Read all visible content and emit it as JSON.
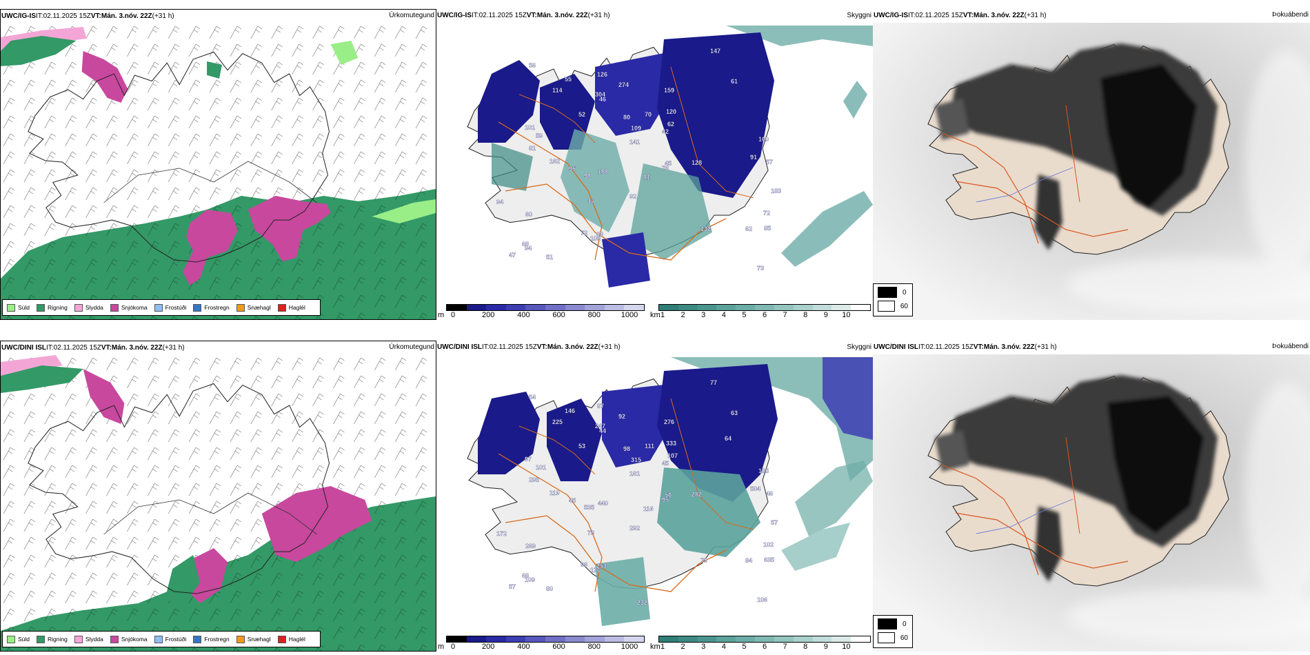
{
  "rows": [
    {
      "model": "UWC/IG-IS",
      "init_label": " IT: ",
      "init": "02.11.2025 15Z",
      "valid_label": " VT: ",
      "valid": "Mán. 3.nóv. 22Z",
      "lead": " (+31 h)"
    },
    {
      "model": "UWC/DINI ISL",
      "init_label": " IT: ",
      "init": "02.11.2025 15Z",
      "valid_label": " VT: ",
      "valid": "Mán. 3.nóv. 22Z",
      "lead": " (+31 h)"
    }
  ],
  "titles": {
    "precip_type": "Úrkomutegund",
    "visibility": "Skyggni",
    "fog": "Þokuábendi"
  },
  "precip_legend": [
    {
      "label": "Súld",
      "color": "#99ee88"
    },
    {
      "label": "Rigning",
      "color": "#339966"
    },
    {
      "label": "Slydda",
      "color": "#f3a6d6"
    },
    {
      "label": "Snjókoma",
      "color": "#c8489e"
    },
    {
      "label": "Frostúði",
      "color": "#8fbfef"
    },
    {
      "label": "Frostregn",
      "color": "#3376c9"
    },
    {
      "label": "Snæhagl",
      "color": "#ef9a1f"
    },
    {
      "label": "Haglél",
      "color": "#e01f1f"
    }
  ],
  "cloudbase_bar": {
    "unit": "m",
    "ticks": [
      "0",
      "200",
      "400",
      "600",
      "800",
      "1000"
    ],
    "colors": [
      "#000000",
      "#1a1a8a",
      "#2a2aa6",
      "#3e3eb3",
      "#5757bd",
      "#7070c6",
      "#8a8acf",
      "#a3a3da",
      "#bcbce4",
      "#d5d5ee"
    ]
  },
  "visibility_bar": {
    "unit": "km",
    "ticks": [
      "1",
      "2",
      "3",
      "4",
      "5",
      "6",
      "7",
      "8",
      "9",
      "10"
    ],
    "colors": [
      "#2f7f78",
      "#3d8a83",
      "#4b958f",
      "#5ba29b",
      "#6dada7",
      "#80b9b3",
      "#94c5bf",
      "#aad1cc",
      "#c2ddd9",
      "#dbeae7",
      "#ffffff"
    ]
  },
  "fog_legend": [
    "0",
    "60"
  ],
  "cloud_labels_row1": [
    "72",
    "126",
    "80",
    "51",
    "56",
    "42",
    "47",
    "47",
    "95",
    "55",
    "52",
    "61",
    "68",
    "46",
    "45",
    "57",
    "62",
    "73",
    "101",
    "59",
    "94",
    "72",
    "70",
    "81",
    "147",
    "108",
    "109",
    "91",
    "100",
    "98",
    "128",
    "120",
    "188",
    "141",
    "132",
    "183",
    "76",
    "62",
    "274",
    "304",
    "159",
    "81",
    "60",
    "94",
    "88",
    "162",
    "114",
    "92",
    "85"
  ],
  "cloud_labels_row2": [
    "96",
    "87",
    "98",
    "80",
    "54",
    "45",
    "57",
    "73",
    "45",
    "146",
    "53",
    "63",
    "68",
    "44",
    "50",
    "46",
    "84",
    "106",
    "97",
    "101",
    "109",
    "102",
    "111",
    "116",
    "77",
    "176",
    "315",
    "504",
    "185",
    "535",
    "282",
    "333",
    "440",
    "161",
    "79",
    "57",
    "95",
    "107",
    "92",
    "247",
    "276",
    "295",
    "269",
    "172",
    "253",
    "119",
    "225",
    "292",
    "635",
    "232",
    "64"
  ]
}
